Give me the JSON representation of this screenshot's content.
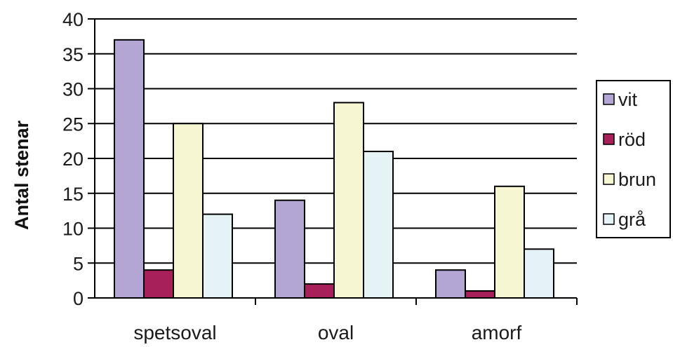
{
  "chart_data": {
    "type": "bar",
    "ylabel": "Antal stenar",
    "xlabel": "",
    "ylim": [
      0,
      40
    ],
    "yticks": [
      0,
      5,
      10,
      15,
      20,
      25,
      30,
      35,
      40
    ],
    "categories": [
      "spetsoval",
      "oval",
      "amorf"
    ],
    "series": [
      {
        "name": "vit",
        "color": "#b3a6d4",
        "values": [
          37,
          14,
          4
        ]
      },
      {
        "name": "röd",
        "color": "#a8205a",
        "values": [
          4,
          2,
          1
        ]
      },
      {
        "name": "brun",
        "color": "#f6f6d2",
        "values": [
          25,
          28,
          16
        ]
      },
      {
        "name": "grå",
        "color": "#e6f3f6",
        "values": [
          12,
          21,
          7
        ]
      }
    ],
    "grid": true,
    "legend_position": "right"
  }
}
